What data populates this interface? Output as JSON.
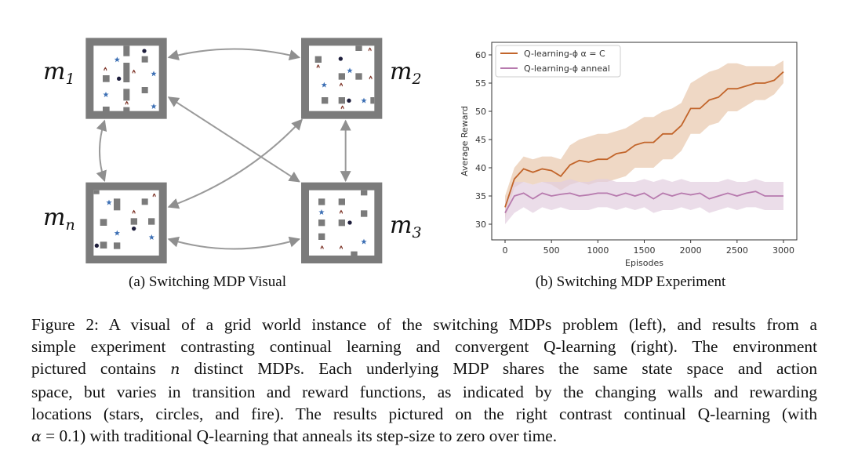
{
  "figure_a": {
    "labels": {
      "m1": {
        "base": "m",
        "sub": "1"
      },
      "m2": {
        "base": "m",
        "sub": "2"
      },
      "mn": {
        "base": "m",
        "sub": "n"
      },
      "m3": {
        "base": "m",
        "sub": "3"
      }
    },
    "subcaption": "(a) Switching MDP Visual"
  },
  "figure_b": {
    "subcaption": "(b) Switching MDP Experiment"
  },
  "chart_data": {
    "type": "line",
    "title": "",
    "xlabel": "Episodes",
    "ylabel": "Average Reward",
    "xlim": [
      -130,
      3130
    ],
    "ylim": [
      27.2,
      62.2
    ],
    "xticks": [
      0,
      500,
      1000,
      1500,
      2000,
      2500,
      3000
    ],
    "yticks": [
      30,
      35,
      40,
      45,
      50,
      55,
      60
    ],
    "grid": false,
    "legend_position": "top-left",
    "x": [
      0,
      100,
      200,
      300,
      400,
      500,
      600,
      700,
      800,
      900,
      1000,
      1100,
      1200,
      1300,
      1400,
      1500,
      1600,
      1700,
      1800,
      1900,
      2000,
      2100,
      2200,
      2300,
      2400,
      2500,
      2600,
      2700,
      2800,
      2900,
      3000
    ],
    "series": [
      {
        "name": "Q-learning-ϕ α = C",
        "color": "#c2652b",
        "band_color": "#e8c7ad",
        "values": [
          33,
          38,
          39.8,
          39.2,
          39.8,
          39.5,
          38.5,
          40.5,
          41.3,
          41,
          41.5,
          41.5,
          42.5,
          42.8,
          44,
          44.5,
          44.5,
          46,
          46,
          47.5,
          50.5,
          50.5,
          52,
          52.5,
          54,
          54,
          54.5,
          55,
          55,
          55.5,
          57
        ],
        "upper": [
          35,
          40,
          42,
          41.5,
          42,
          42,
          41.5,
          44,
          45,
          45.5,
          46,
          46,
          46.5,
          47,
          48,
          49,
          49,
          50,
          50.5,
          51.5,
          55,
          56,
          57,
          57.5,
          58.5,
          58.5,
          58,
          58,
          58,
          58,
          59
        ],
        "lower": [
          31,
          36.5,
          37.5,
          37,
          37.5,
          37,
          36,
          37,
          37.5,
          37,
          37.5,
          37.5,
          38,
          38.5,
          40,
          40,
          40,
          41.5,
          41.5,
          43,
          46,
          46,
          47.5,
          48,
          50,
          50,
          51,
          52,
          52,
          53,
          55
        ]
      },
      {
        "name": "Q-learning-ϕ anneal",
        "color": "#b77aae",
        "band_color": "#e2cfe0",
        "values": [
          32,
          35,
          35.5,
          34.5,
          35.5,
          35,
          35.3,
          35.5,
          35,
          35.2,
          35.5,
          35.5,
          35,
          35.5,
          35,
          35.5,
          34.5,
          35.5,
          35,
          35.5,
          35.2,
          35.5,
          34.5,
          35,
          35.5,
          35,
          35.5,
          35.8,
          35,
          35,
          35
        ],
        "upper": [
          34,
          37.5,
          37.5,
          37,
          37.5,
          37.5,
          37.5,
          38,
          37.5,
          37.5,
          38,
          38,
          37.5,
          37.5,
          37.5,
          38,
          37.5,
          38,
          37.5,
          38,
          37.5,
          37.5,
          37.5,
          37.5,
          38,
          37.5,
          37.5,
          38,
          37.5,
          37.5,
          37.5
        ],
        "lower": [
          30,
          32,
          33,
          32,
          33,
          32.5,
          33,
          32.5,
          32.5,
          32.5,
          33,
          33,
          32.5,
          33,
          32.5,
          33,
          32,
          32.5,
          32.5,
          33,
          32.5,
          33,
          32,
          32.5,
          33,
          32.5,
          33,
          33,
          32.5,
          32.5,
          32.5
        ]
      }
    ]
  },
  "caption": {
    "lines": [
      [
        "Figure 2: A visual of a grid world instance of the switching MDPs problem (left), and results from a"
      ],
      [
        "simple experiment contrasting continual learning and convergent Q-learning (right). The environment"
      ],
      [
        "pictured contains ",
        "n",
        " distinct MDPs. Each underlying MDP shares the same state space and action"
      ],
      [
        "space, but varies in transition and reward functions, as indicated by the changing walls and rewarding"
      ],
      [
        "locations (stars, circles, and fire). The results pictured on the right contrast continual Q-learning (with"
      ],
      [
        "α",
        " = 0.1) with traditional Q-learning that anneals its step-size to zero over time."
      ]
    ]
  }
}
